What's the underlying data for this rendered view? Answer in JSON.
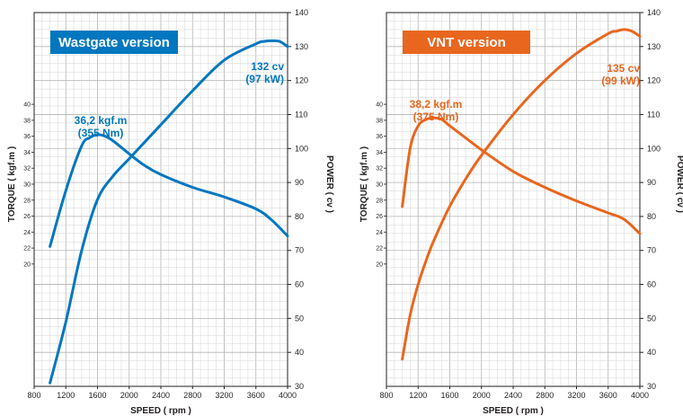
{
  "chart_data": [
    {
      "type": "line",
      "title": "Wastgate version",
      "accent": "#0077bf",
      "xlabel": "SPEED  ( rpm )",
      "ylabel_left": "TORQUE  ( kgf.m )",
      "ylabel_right": "POWER  ( cv )",
      "xlim": [
        800,
        4000
      ],
      "x_ticks": [
        "800",
        "1200",
        "1600",
        "2000",
        "2400",
        "2800",
        "3200",
        "3600",
        "4000"
      ],
      "torque_ticks": [
        "20",
        "22",
        "24",
        "26",
        "28",
        "30",
        "32",
        "34",
        "36",
        "38",
        "40"
      ],
      "power_ticks": [
        "30",
        "40",
        "50",
        "60",
        "70",
        "80",
        "90",
        "100",
        "110",
        "120",
        "130",
        "140"
      ],
      "grid": true,
      "torque_annotation": [
        "36,2 kgf.m",
        "(355 Nm)"
      ],
      "power_annotation": [
        "132 cv",
        "(97 kW)"
      ],
      "series": [
        {
          "axis": "torque",
          "x": [
            1000,
            1200,
            1400,
            1500,
            1600,
            1700,
            1800,
            2000,
            2200,
            2400,
            2800,
            3200,
            3600,
            3800,
            4000
          ],
          "y": [
            22.2,
            29.2,
            34.8,
            35.8,
            36.2,
            36.0,
            35.4,
            33.8,
            32.3,
            31.2,
            29.6,
            28.4,
            26.9,
            25.5,
            23.5
          ]
        },
        {
          "axis": "power",
          "x": [
            1000,
            1200,
            1400,
            1600,
            1800,
            2000,
            2400,
            2800,
            3200,
            3600,
            3700,
            3800,
            3900,
            4000
          ],
          "y": [
            31,
            49,
            70,
            85,
            92,
            97,
            107,
            117,
            126,
            130.8,
            131.5,
            131.7,
            131.5,
            130
          ]
        }
      ]
    },
    {
      "type": "line",
      "title": "VNT version",
      "accent": "#e8661e",
      "xlabel": "SPEED  ( rpm )",
      "ylabel_left": "TORQUE  ( kgf.m )",
      "ylabel_right": "POWER  ( cv )",
      "xlim": [
        800,
        4000
      ],
      "x_ticks": [
        "800",
        "1200",
        "1600",
        "2000",
        "2400",
        "2800",
        "3200",
        "3600",
        "4000"
      ],
      "torque_ticks": [
        "20",
        "22",
        "24",
        "26",
        "28",
        "30",
        "32",
        "34",
        "36",
        "38",
        "40"
      ],
      "power_ticks": [
        "30",
        "40",
        "50",
        "60",
        "70",
        "80",
        "90",
        "100",
        "110",
        "120",
        "130",
        "140"
      ],
      "grid": true,
      "torque_annotation": [
        "38,2 kgf.m",
        "(375 Nm)"
      ],
      "power_annotation": [
        "135 cv",
        "(99 kW)"
      ],
      "series": [
        {
          "axis": "torque",
          "x": [
            1000,
            1100,
            1200,
            1300,
            1400,
            1500,
            1600,
            1800,
            2000,
            2400,
            2800,
            3200,
            3600,
            3800,
            4000
          ],
          "y": [
            27.2,
            34.5,
            37.3,
            38.1,
            38.3,
            38.1,
            37.3,
            35.8,
            34.3,
            31.6,
            29.6,
            27.9,
            26.4,
            25.6,
            23.8
          ]
        },
        {
          "axis": "power",
          "x": [
            1000,
            1100,
            1200,
            1300,
            1400,
            1600,
            1800,
            2000,
            2400,
            2800,
            3200,
            3600,
            3700,
            3800,
            3900,
            4000
          ],
          "y": [
            38,
            51,
            60,
            67,
            73,
            83,
            91,
            98,
            110,
            120,
            128,
            133.8,
            134.5,
            135,
            134.5,
            133
          ]
        }
      ]
    }
  ]
}
